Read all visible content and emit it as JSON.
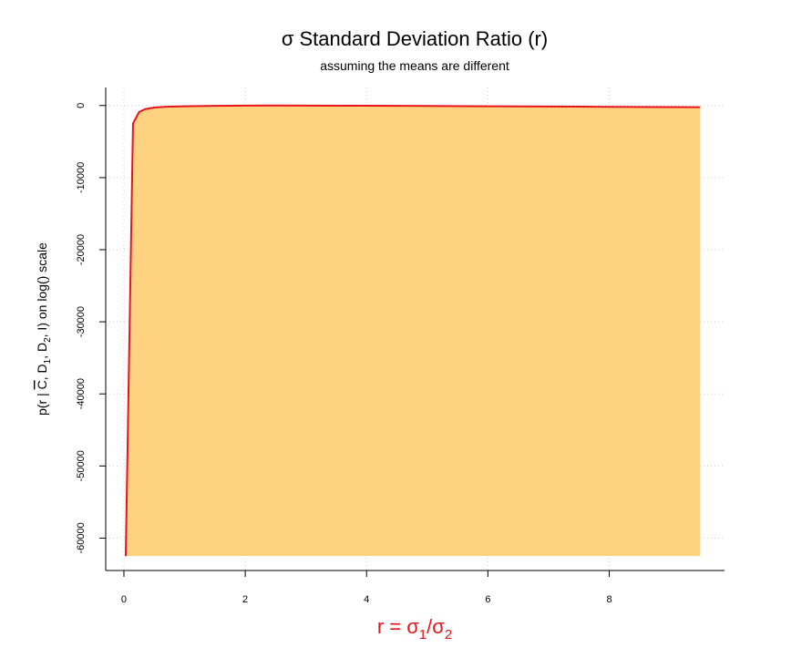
{
  "chart_data": {
    "type": "area",
    "title": "σ Standard Deviation Ratio (r)",
    "subtitle": "assuming the means are different",
    "ylabel": {
      "prefix": "p(r | ",
      "c": "C",
      "mid1": ", D",
      "sub1": "1",
      "mid2": ", D",
      "sub2": "2",
      "suffix": ", I) on log() scale"
    },
    "xlabel": {
      "prefix": "r = σ",
      "sub1": "1",
      "mid": "/σ",
      "sub2": "2"
    },
    "xlim": [
      -0.3,
      9.9
    ],
    "ylim": [
      -64500,
      2500
    ],
    "x_ticks": [
      0,
      2,
      4,
      6,
      8
    ],
    "x_tick_labels": [
      "0",
      "2",
      "4",
      "6",
      "8"
    ],
    "y_ticks": [
      0,
      -10000,
      -20000,
      -30000,
      -40000,
      -50000,
      -60000
    ],
    "y_tick_labels": [
      "0",
      "-10000",
      "-20000",
      "-30000",
      "-40000",
      "-50000",
      "-60000"
    ],
    "grid": true,
    "colors": {
      "fill": "#FDD382",
      "line": "#E8141B",
      "xlabel": "#E8141B",
      "grid": "#d0d0d0"
    },
    "series": [
      {
        "x": [
          0.03,
          0.15,
          0.25,
          0.35,
          0.5,
          0.7,
          1.0,
          1.5,
          2.0,
          2.5,
          3.0,
          4.0,
          5.0,
          6.0,
          7.0,
          8.0,
          9.0,
          9.5
        ],
        "values": [
          -62500,
          -2500,
          -900,
          -500,
          -280,
          -170,
          -100,
          -50,
          -20,
          0,
          -10,
          -30,
          -60,
          -100,
          -140,
          -180,
          -220,
          -240
        ]
      }
    ]
  }
}
